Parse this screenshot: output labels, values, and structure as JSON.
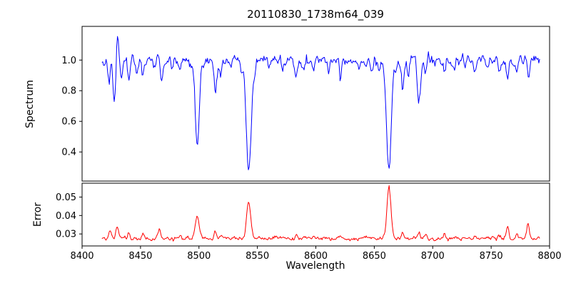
{
  "figure": {
    "background": "#ffffff",
    "axes_edge_color": "#000000"
  },
  "chart_data": {
    "type": "line",
    "title": "20110830_1738m64_039",
    "xlabel": "Wavelength",
    "xlim": [
      8400,
      8800
    ],
    "xticks": [
      "8400",
      "8450",
      "8500",
      "8550",
      "8600",
      "8650",
      "8700",
      "8750",
      "8800"
    ],
    "x_start": 8417,
    "x_end": 8792,
    "x_step": 0.7,
    "grid": false,
    "legend": "none",
    "panels": [
      {
        "name": "spectrum",
        "ylabel": "Spectrum",
        "ylim": [
          0.21,
          1.22
        ],
        "yticks": [
          "0.4",
          "0.6",
          "0.8",
          "1.0"
        ],
        "line_color": "#0000ff",
        "continuum": 1.0,
        "noise_sigma": 0.016,
        "features_note": "absorption lines as [center_wavelength, depth, sigma]; negative depth = emission spike; Ca II triplet at 8498/8542/8662",
        "features": [
          [
            8423.0,
            0.1,
            1.0
          ],
          [
            8427.5,
            0.3,
            1.1
          ],
          [
            8430.5,
            -0.17,
            0.9
          ],
          [
            8433.5,
            0.12,
            0.9
          ],
          [
            8440.0,
            0.13,
            1.0
          ],
          [
            8447.0,
            0.07,
            0.9
          ],
          [
            8452.0,
            0.09,
            0.9
          ],
          [
            8462.0,
            0.06,
            0.9
          ],
          [
            8468.0,
            0.12,
            1.1
          ],
          [
            8477.0,
            0.06,
            0.9
          ],
          [
            8484.0,
            0.07,
            0.9
          ],
          [
            8493.0,
            0.06,
            0.9
          ],
          [
            8498.5,
            0.55,
            1.7
          ],
          [
            8505.0,
            0.06,
            0.9
          ],
          [
            8514.0,
            0.22,
            1.2
          ],
          [
            8518.5,
            0.12,
            0.9
          ],
          [
            8527.0,
            0.06,
            0.9
          ],
          [
            8536.0,
            0.07,
            0.9
          ],
          [
            8542.5,
            0.74,
            2.1
          ],
          [
            8548.0,
            0.07,
            0.9
          ],
          [
            8560.0,
            0.06,
            0.9
          ],
          [
            8572.0,
            0.06,
            0.9
          ],
          [
            8583.0,
            0.08,
            0.9
          ],
          [
            8590.0,
            0.05,
            0.9
          ],
          [
            8598.0,
            0.09,
            0.9
          ],
          [
            8611.0,
            0.07,
            0.9
          ],
          [
            8621.0,
            0.11,
            1.0
          ],
          [
            8637.0,
            0.05,
            0.9
          ],
          [
            8648.0,
            0.07,
            0.9
          ],
          [
            8654.0,
            0.05,
            0.9
          ],
          [
            8662.5,
            0.73,
            2.0
          ],
          [
            8668.0,
            0.06,
            0.9
          ],
          [
            8674.5,
            0.2,
            1.1
          ],
          [
            8679.0,
            0.1,
            0.9
          ],
          [
            8688.5,
            0.27,
            1.4
          ],
          [
            8694.0,
            0.1,
            0.9
          ],
          [
            8702.0,
            0.05,
            0.9
          ],
          [
            8710.0,
            0.08,
            0.9
          ],
          [
            8718.0,
            0.05,
            0.9
          ],
          [
            8728.0,
            0.05,
            0.9
          ],
          [
            8736.0,
            0.06,
            0.9
          ],
          [
            8747.0,
            0.05,
            0.9
          ],
          [
            8757.0,
            0.09,
            0.9
          ],
          [
            8764.0,
            0.14,
            1.1
          ],
          [
            8772.0,
            0.09,
            0.9
          ],
          [
            8782.0,
            0.11,
            1.0
          ]
        ]
      },
      {
        "name": "error",
        "ylabel": "Error",
        "ylim": [
          0.0235,
          0.0575
        ],
        "yticks": [
          "0.03",
          "0.04",
          "0.05"
        ],
        "line_color": "#ff0000",
        "baseline": 0.0275,
        "noise_sigma": 0.0005,
        "features_note": "error peaks as [center_wavelength, height, sigma]",
        "features": [
          [
            8424.0,
            0.0035,
            1.4
          ],
          [
            8430.0,
            0.0065,
            1.2
          ],
          [
            8440.0,
            0.0025,
            1.0
          ],
          [
            8452.0,
            0.002,
            1.0
          ],
          [
            8466.0,
            0.0055,
            1.2
          ],
          [
            8484.0,
            0.0015,
            1.0
          ],
          [
            8498.5,
            0.012,
            1.5
          ],
          [
            8514.0,
            0.0035,
            1.0
          ],
          [
            8519.0,
            0.002,
            0.9
          ],
          [
            8542.5,
            0.02,
            1.7
          ],
          [
            8583.0,
            0.0015,
            0.9
          ],
          [
            8598.0,
            0.0015,
            0.9
          ],
          [
            8621.0,
            0.0018,
            0.9
          ],
          [
            8648.0,
            0.0012,
            0.9
          ],
          [
            8662.5,
            0.0285,
            1.7
          ],
          [
            8674.0,
            0.003,
            1.0
          ],
          [
            8688.5,
            0.0035,
            1.1
          ],
          [
            8694.0,
            0.002,
            0.9
          ],
          [
            8710.0,
            0.0015,
            0.9
          ],
          [
            8736.0,
            0.0012,
            0.9
          ],
          [
            8757.0,
            0.002,
            0.9
          ],
          [
            8764.0,
            0.0065,
            1.1
          ],
          [
            8772.0,
            0.0025,
            0.9
          ],
          [
            8781.5,
            0.0085,
            1.1
          ]
        ]
      }
    ]
  }
}
